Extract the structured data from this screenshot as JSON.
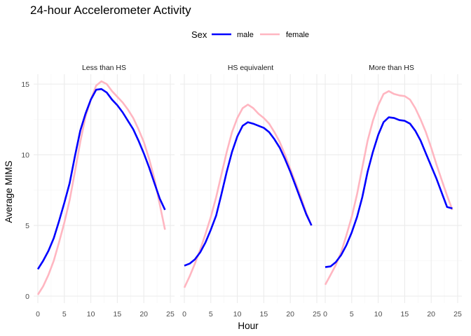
{
  "chart_data": {
    "type": "line",
    "title": "24-hour Accelerometer Activity",
    "xlabel": "Hour",
    "ylabel": "Average MIMS",
    "legend": {
      "title": "Sex",
      "placement": "top"
    },
    "xlim": [
      0,
      25
    ],
    "ylim": [
      0,
      15.7
    ],
    "xticks": [
      0,
      5,
      10,
      15,
      20,
      25
    ],
    "yticks": [
      0,
      5,
      10,
      15
    ],
    "x": [
      0,
      1,
      2,
      3,
      4,
      5,
      6,
      7,
      8,
      9,
      10,
      11,
      12,
      13,
      14,
      15,
      16,
      17,
      18,
      19,
      20,
      21,
      22,
      23,
      24
    ],
    "panels": [
      {
        "label": "Less than HS",
        "series": [
          {
            "name": "male",
            "color": "#0000ff",
            "values": [
              1.9,
              2.5,
              3.2,
              4.1,
              5.3,
              6.6,
              8.0,
              9.9,
              11.7,
              12.9,
              13.9,
              14.6,
              14.65,
              14.4,
              13.9,
              13.5,
              13.0,
              12.4,
              11.8,
              11.0,
              10.1,
              9.1,
              8.0,
              6.9,
              6.1
            ]
          },
          {
            "name": "female",
            "color": "#ffb6c1",
            "values": [
              0.1,
              0.7,
              1.5,
              2.5,
              3.8,
              5.2,
              6.8,
              8.8,
              10.9,
              12.7,
              13.9,
              14.9,
              15.2,
              15.0,
              14.5,
              14.1,
              13.7,
              13.2,
              12.6,
              11.8,
              10.9,
              9.7,
              8.3,
              6.5,
              4.7
            ]
          }
        ]
      },
      {
        "label": "HS equivalent",
        "series": [
          {
            "name": "male",
            "color": "#0000ff",
            "values": [
              2.15,
              2.3,
              2.6,
              3.1,
              3.8,
              4.7,
              5.7,
              7.2,
              8.8,
              10.2,
              11.3,
              12.05,
              12.3,
              12.2,
              12.05,
              11.9,
              11.6,
              11.1,
              10.5,
              9.7,
              8.8,
              7.8,
              6.8,
              5.8,
              5.0
            ]
          },
          {
            "name": "female",
            "color": "#ffb6c1",
            "values": [
              0.6,
              1.4,
              2.3,
              3.3,
              4.4,
              5.6,
              7.0,
              8.6,
              10.2,
              11.6,
              12.6,
              13.3,
              13.55,
              13.3,
              12.9,
              12.6,
              12.2,
              11.6,
              10.9,
              10.0,
              9.0,
              8.0,
              7.0,
              5.9,
              5.0
            ]
          }
        ]
      },
      {
        "label": "More than HS",
        "series": [
          {
            "name": "male",
            "color": "#0000ff",
            "values": [
              2.05,
              2.1,
              2.4,
              2.9,
              3.6,
              4.5,
              5.6,
              7.0,
              8.8,
              10.2,
              11.4,
              12.3,
              12.65,
              12.6,
              12.45,
              12.4,
              12.2,
              11.7,
              11.0,
              10.1,
              9.2,
              8.3,
              7.3,
              6.3,
              6.2
            ]
          },
          {
            "name": "female",
            "color": "#ffb6c1",
            "values": [
              0.8,
              1.5,
              2.2,
              3.1,
              4.3,
              5.6,
              7.2,
              9.1,
              11.0,
              12.4,
              13.5,
              14.3,
              14.5,
              14.3,
              14.2,
              14.15,
              13.9,
              13.3,
              12.5,
              11.6,
              10.5,
              9.3,
              8.2,
              7.1,
              6.1
            ]
          }
        ]
      }
    ]
  }
}
